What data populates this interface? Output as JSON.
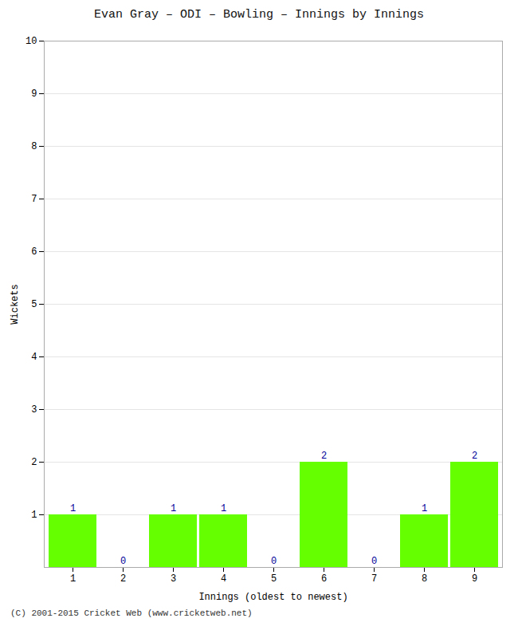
{
  "chart_data": {
    "type": "bar",
    "title": "Evan Gray – ODI – Bowling – Innings by Innings",
    "xlabel": "Innings (oldest to newest)",
    "ylabel": "Wickets",
    "categories": [
      "1",
      "2",
      "3",
      "4",
      "5",
      "6",
      "7",
      "8",
      "9"
    ],
    "values": [
      1,
      0,
      1,
      1,
      0,
      2,
      0,
      1,
      2
    ],
    "color": "#66ff00",
    "ylim": [
      0,
      10
    ],
    "yticks": [
      1,
      2,
      3,
      4,
      5,
      6,
      7,
      8,
      9,
      10
    ],
    "grid": true,
    "data_labels": true,
    "caption": "(C) 2001-2015 Cricket Web (www.cricketweb.net)"
  }
}
